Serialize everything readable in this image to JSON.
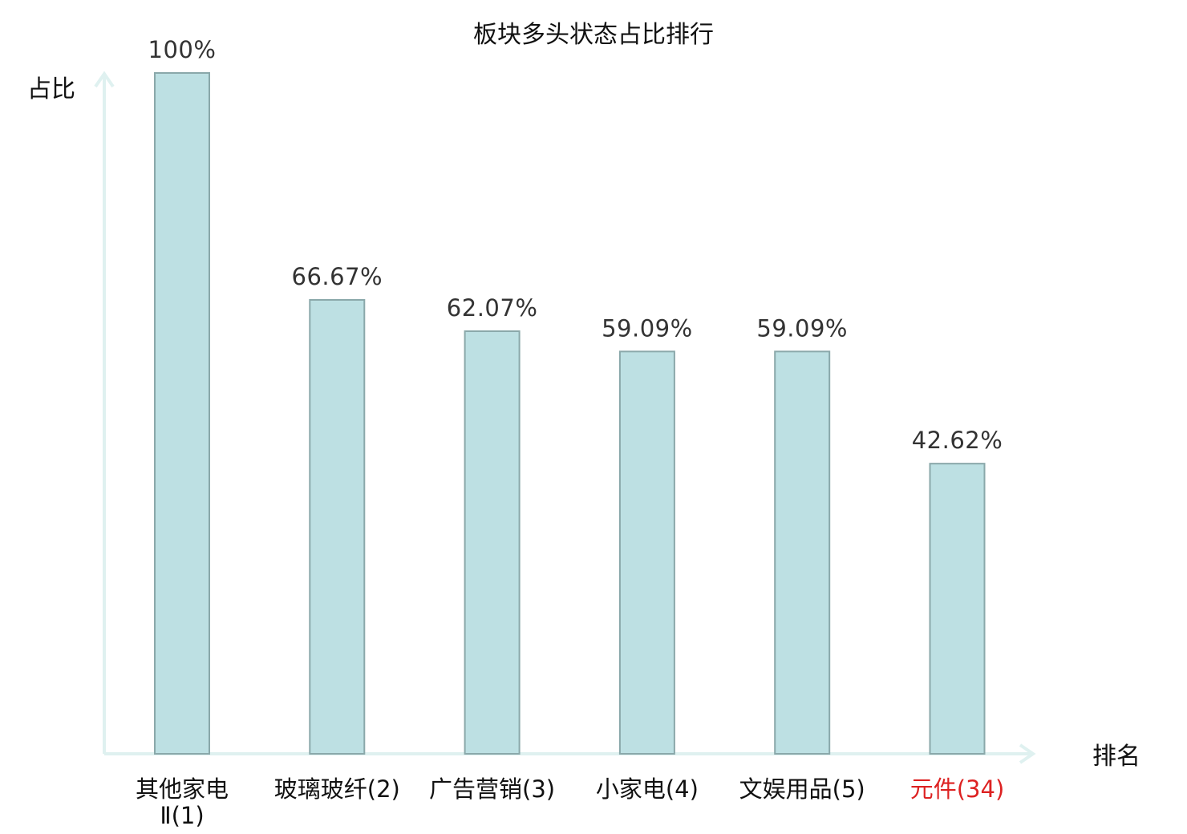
{
  "chart_data": {
    "type": "bar",
    "title": "板块多头状态占比排行",
    "ylabel": "占比",
    "xlabel": "排名",
    "ylim": [
      0,
      100
    ],
    "categories": [
      {
        "lines": [
          "其他家电",
          "Ⅱ(1)"
        ],
        "highlight": false
      },
      {
        "lines": [
          "玻璃玻纤(2)"
        ],
        "highlight": false
      },
      {
        "lines": [
          "广告营销(3)"
        ],
        "highlight": false
      },
      {
        "lines": [
          "小家电(4)"
        ],
        "highlight": false
      },
      {
        "lines": [
          "文娱用品(5)"
        ],
        "highlight": false
      },
      {
        "lines": [
          "元件(34)"
        ],
        "highlight": true
      }
    ],
    "values": [
      100,
      66.67,
      62.07,
      59.09,
      59.09,
      42.62
    ],
    "value_labels": [
      "100%",
      "66.67%",
      "62.07%",
      "59.09%",
      "59.09%",
      "42.62%"
    ],
    "colors": {
      "bar": "#bde0e3",
      "bar_stroke": "#8aa8aa",
      "axis": "#dff1f0",
      "highlight": "#dd2222"
    }
  }
}
